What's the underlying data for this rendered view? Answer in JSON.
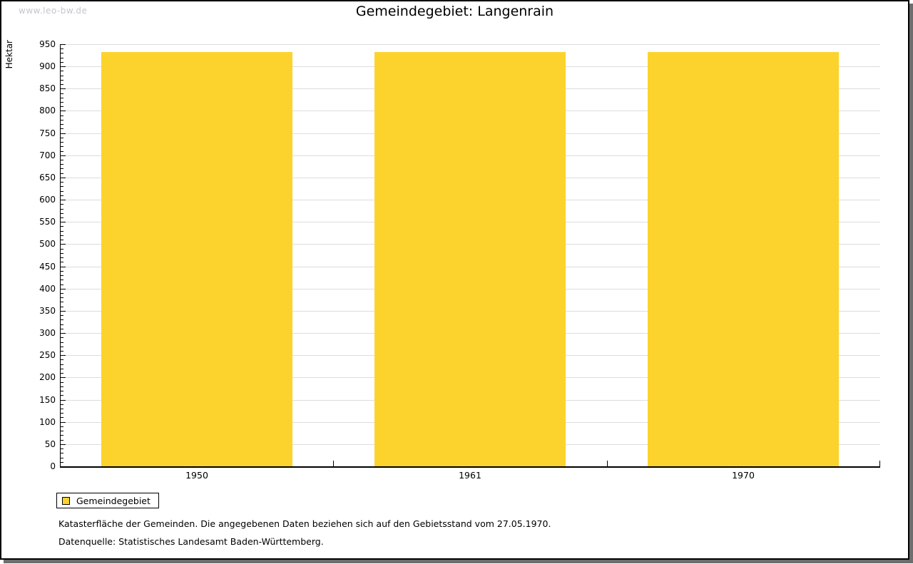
{
  "watermark": "www.leo-bw.de",
  "header": {
    "title": "Gemeindegebiet: Langenrain"
  },
  "legend": {
    "label": "Gemeindegebiet"
  },
  "footnotes": {
    "line1": "Katasterfläche der Gemeinden. Die angegebenen Daten beziehen sich auf den Gebietsstand vom 27.05.1970.",
    "line2": "Datenquelle: Statistisches Landesamt Baden-Württemberg."
  },
  "chart_data": {
    "type": "bar",
    "title": "Gemeindegebiet: Langenrain",
    "categories": [
      "1950",
      "1961",
      "1970"
    ],
    "series": [
      {
        "name": "Gemeindegebiet",
        "values": [
          933,
          933,
          933
        ]
      }
    ],
    "xlabel": "",
    "ylabel": "Hektar",
    "ylim": [
      0,
      950
    ],
    "ytick_major": 50,
    "ytick_minor": 10,
    "grid": "horizontal-major",
    "legend_position": "bottom-left",
    "bar_width_fraction": 0.7
  },
  "colors": {
    "bar": "#FCD32C",
    "grid": "#DDDDDD",
    "axis": "#000000",
    "watermark": "#C5C5CD",
    "frame_shadow": "#6E6E6E",
    "background": "#FFFFFF"
  }
}
